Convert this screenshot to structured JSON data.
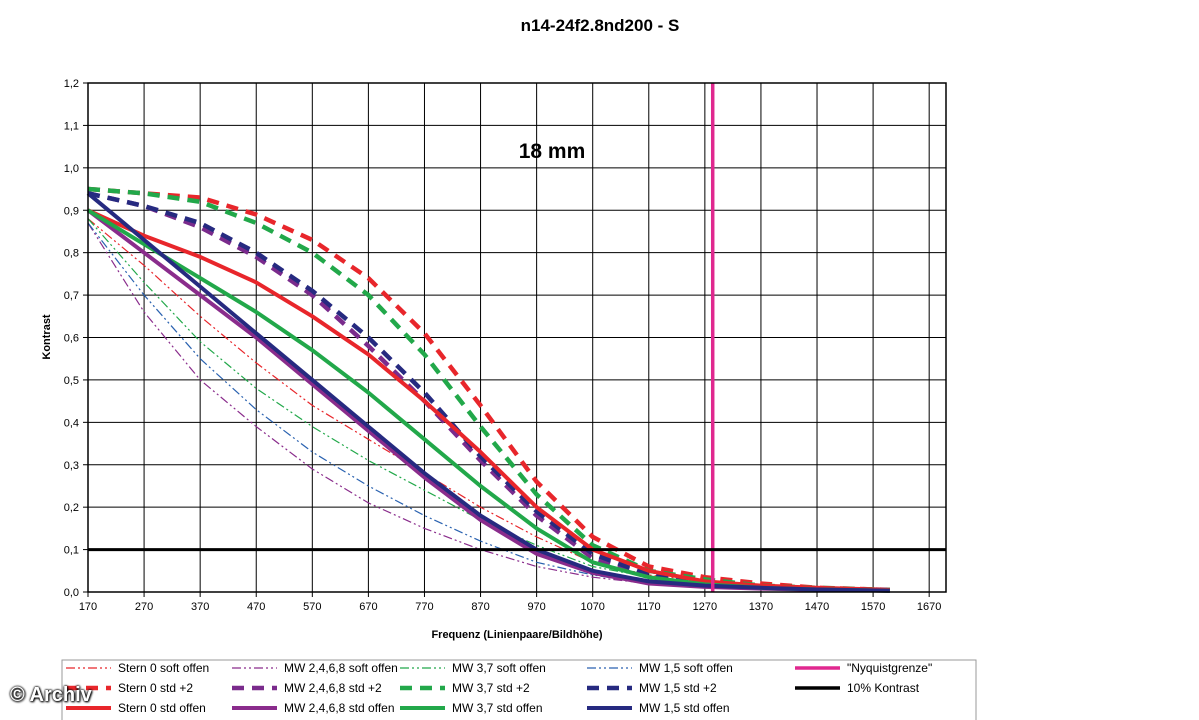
{
  "chart_data": {
    "type": "line",
    "title": "n14-24f2.8nd200 - S",
    "annotation": "18 mm",
    "xlabel": "Frequenz (Linienpaare/Bildhöhe)",
    "ylabel": "Kontrast",
    "xlim": [
      170,
      1700
    ],
    "ylim": [
      0,
      1.2
    ],
    "xticks": [
      170,
      270,
      370,
      470,
      570,
      670,
      770,
      870,
      970,
      1070,
      1170,
      1270,
      1370,
      1470,
      1570,
      1670
    ],
    "yticks": [
      "0,0",
      "0,1",
      "0,2",
      "0,3",
      "0,4",
      "0,5",
      "0,6",
      "0,7",
      "0,8",
      "0,9",
      "1,0",
      "1,1",
      "1,2"
    ],
    "grid": true,
    "legend_position": "bottom",
    "series": [
      {
        "name": "Stern 0 soft offen",
        "color": "#e8262b",
        "style": "dashdot-thin",
        "x": [
          170,
          270,
          370,
          470,
          570,
          670,
          770,
          870,
          970,
          1070,
          1170,
          1270,
          1370,
          1470,
          1600
        ],
        "y": [
          0.88,
          0.77,
          0.65,
          0.54,
          0.44,
          0.36,
          0.28,
          0.2,
          0.13,
          0.07,
          0.04,
          0.025,
          0.015,
          0.01,
          0.005
        ]
      },
      {
        "name": "Stern 0 std +2",
        "color": "#e8262b",
        "style": "dash-thick",
        "x": [
          170,
          270,
          370,
          470,
          570,
          670,
          770,
          870,
          970,
          1070,
          1170,
          1270,
          1370,
          1470,
          1600
        ],
        "y": [
          0.95,
          0.94,
          0.93,
          0.89,
          0.83,
          0.74,
          0.61,
          0.44,
          0.26,
          0.13,
          0.06,
          0.035,
          0.02,
          0.01,
          0.005
        ]
      },
      {
        "name": "Stern 0 std offen",
        "color": "#e8262b",
        "style": "solid-thick",
        "x": [
          170,
          270,
          370,
          470,
          570,
          670,
          770,
          870,
          970,
          1070,
          1170,
          1270,
          1370,
          1470,
          1600
        ],
        "y": [
          0.9,
          0.84,
          0.79,
          0.73,
          0.65,
          0.56,
          0.45,
          0.33,
          0.2,
          0.1,
          0.05,
          0.025,
          0.015,
          0.01,
          0.005
        ]
      },
      {
        "name": "MW 2,4,6,8 soft offen",
        "color": "#8a2c8c",
        "style": "dashdot-thin",
        "x": [
          170,
          270,
          370,
          470,
          570,
          670,
          770,
          870,
          970,
          1070,
          1170,
          1270,
          1370,
          1470,
          1600
        ],
        "y": [
          0.87,
          0.66,
          0.5,
          0.39,
          0.29,
          0.21,
          0.15,
          0.1,
          0.06,
          0.035,
          0.02,
          0.01,
          0.008,
          0.005,
          0.003
        ]
      },
      {
        "name": "MW 2,4,6,8 std +2",
        "color": "#7a2b8c",
        "style": "dash-thick",
        "x": [
          170,
          270,
          370,
          470,
          570,
          670,
          770,
          870,
          970,
          1070,
          1170,
          1270,
          1370,
          1470,
          1600
        ],
        "y": [
          0.94,
          0.91,
          0.86,
          0.79,
          0.7,
          0.58,
          0.45,
          0.31,
          0.18,
          0.08,
          0.04,
          0.02,
          0.012,
          0.008,
          0.005
        ]
      },
      {
        "name": "MW 2,4,6,8 std offen",
        "color": "#8a2c8c",
        "style": "solid-thick",
        "x": [
          170,
          270,
          370,
          470,
          570,
          670,
          770,
          870,
          970,
          1070,
          1170,
          1270,
          1370,
          1470,
          1600
        ],
        "y": [
          0.9,
          0.8,
          0.7,
          0.6,
          0.49,
          0.38,
          0.27,
          0.17,
          0.09,
          0.045,
          0.02,
          0.012,
          0.008,
          0.005,
          0.003
        ]
      },
      {
        "name": "MW 3,7 soft offen",
        "color": "#22a84a",
        "style": "dashdot-thin",
        "x": [
          170,
          270,
          370,
          470,
          570,
          670,
          770,
          870,
          970,
          1070,
          1170,
          1270,
          1370,
          1470,
          1600
        ],
        "y": [
          0.88,
          0.73,
          0.59,
          0.48,
          0.39,
          0.31,
          0.24,
          0.17,
          0.11,
          0.06,
          0.035,
          0.02,
          0.01,
          0.007,
          0.004
        ]
      },
      {
        "name": "MW 3,7 std +2",
        "color": "#22a84a",
        "style": "dash-thick",
        "x": [
          170,
          270,
          370,
          470,
          570,
          670,
          770,
          870,
          970,
          1070,
          1170,
          1270,
          1370,
          1470,
          1600
        ],
        "y": [
          0.95,
          0.94,
          0.92,
          0.87,
          0.8,
          0.7,
          0.56,
          0.39,
          0.23,
          0.11,
          0.05,
          0.03,
          0.015,
          0.01,
          0.005
        ]
      },
      {
        "name": "MW 3,7 std offen",
        "color": "#22a84a",
        "style": "solid-thick",
        "x": [
          170,
          270,
          370,
          470,
          570,
          670,
          770,
          870,
          970,
          1070,
          1170,
          1270,
          1370,
          1470,
          1600
        ],
        "y": [
          0.9,
          0.82,
          0.74,
          0.66,
          0.57,
          0.47,
          0.36,
          0.25,
          0.15,
          0.07,
          0.035,
          0.018,
          0.01,
          0.006,
          0.003
        ]
      },
      {
        "name": "MW 1,5 soft offen",
        "color": "#2a62b0",
        "style": "dashdot-thin",
        "x": [
          170,
          270,
          370,
          470,
          570,
          670,
          770,
          870,
          970,
          1070,
          1170,
          1270,
          1370,
          1470,
          1600
        ],
        "y": [
          0.87,
          0.7,
          0.55,
          0.43,
          0.33,
          0.25,
          0.18,
          0.12,
          0.07,
          0.04,
          0.02,
          0.012,
          0.008,
          0.005,
          0.003
        ]
      },
      {
        "name": "MW 1,5 std +2",
        "color": "#262a80",
        "style": "dash-thick",
        "x": [
          170,
          270,
          370,
          470,
          570,
          670,
          770,
          870,
          970,
          1070,
          1170,
          1270,
          1370,
          1470,
          1600
        ],
        "y": [
          0.94,
          0.91,
          0.87,
          0.8,
          0.71,
          0.6,
          0.47,
          0.32,
          0.19,
          0.09,
          0.04,
          0.02,
          0.012,
          0.008,
          0.005
        ]
      },
      {
        "name": "MW 1,5 std offen",
        "color": "#262a80",
        "style": "solid-thick",
        "x": [
          170,
          270,
          370,
          470,
          570,
          670,
          770,
          870,
          970,
          1070,
          1170,
          1270,
          1370,
          1470,
          1600
        ],
        "y": [
          0.94,
          0.83,
          0.72,
          0.61,
          0.5,
          0.39,
          0.28,
          0.18,
          0.1,
          0.05,
          0.025,
          0.015,
          0.01,
          0.006,
          0.003
        ]
      }
    ],
    "reference_lines": [
      {
        "name": "\"Nyquistgrenze\"",
        "orientation": "vertical",
        "value": 1284,
        "color": "#e0288f"
      },
      {
        "name": "10% Kontrast",
        "orientation": "horizontal",
        "value": 0.1,
        "color": "#000000"
      }
    ],
    "legend_order": [
      "Stern 0 soft offen",
      "MW 2,4,6,8 soft offen",
      "MW 3,7 soft offen",
      "MW 1,5 soft offen",
      "\"Nyquistgrenze\"",
      "Stern 0 std +2",
      "MW 2,4,6,8 std +2",
      "MW 3,7 std +2",
      "MW 1,5 std +2",
      "10% Kontrast",
      "Stern 0 std offen",
      "MW 2,4,6,8 std offen",
      "MW 3,7 std offen",
      "MW 1,5 std offen"
    ]
  },
  "watermark": "© Archiv"
}
